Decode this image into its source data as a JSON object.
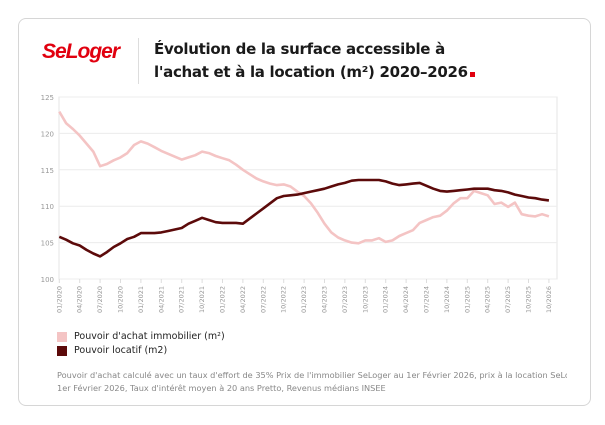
{
  "logo": "SeLoger",
  "title_line1": "Évolution de la surface accessible à",
  "title_line2": "l'achat et à la location (m²) 2020–2026",
  "colors": {
    "brand": "#e1000f",
    "achat": "#f4c4c4",
    "locatif": "#5c0a0a"
  },
  "footnote_line1": "Pouvoir d'achat calculé avec un taux d'effort de 35% Prix de l'immobilier SeLoger au 1er Février 2026, prix à la location SeLoger",
  "footnote_line2": "1er Février 2026, Taux d'intérêt moyen à 20 ans Pretto, Revenus médians INSEE",
  "chart_data": {
    "type": "line",
    "title": "Évolution de la surface accessible à l'achat et à la location (m²) 2020–2026",
    "ylim": [
      100,
      125
    ],
    "yticks": [
      "100",
      "105",
      "110",
      "115",
      "120",
      "125"
    ],
    "grid": true,
    "legend_position": "bottom-left",
    "xticks": [
      "01/2020",
      "04/2020",
      "07/2020",
      "10/2020",
      "01/2021",
      "04/2021",
      "07/2021",
      "10/2021",
      "01/2022",
      "04/2022",
      "07/2022",
      "10/2022",
      "01/2023",
      "04/2023",
      "07/2023",
      "10/2023",
      "01/2024",
      "04/2024",
      "07/2024",
      "10/2024",
      "01/2025",
      "04/2025",
      "07/2025",
      "10/2025",
      "10/2026"
    ],
    "x": [
      "01/2020",
      "02/2020",
      "03/2020",
      "04/2020",
      "05/2020",
      "06/2020",
      "07/2020",
      "08/2020",
      "09/2020",
      "10/2020",
      "11/2020",
      "12/2020",
      "01/2021",
      "02/2021",
      "03/2021",
      "04/2021",
      "05/2021",
      "06/2021",
      "07/2021",
      "08/2021",
      "09/2021",
      "10/2021",
      "11/2021",
      "12/2021",
      "01/2022",
      "02/2022",
      "03/2022",
      "04/2022",
      "05/2022",
      "06/2022",
      "07/2022",
      "08/2022",
      "09/2022",
      "10/2022",
      "11/2022",
      "12/2022",
      "01/2023",
      "02/2023",
      "03/2023",
      "04/2023",
      "05/2023",
      "06/2023",
      "07/2023",
      "08/2023",
      "09/2023",
      "10/2023",
      "11/2023",
      "12/2023",
      "01/2024",
      "02/2024",
      "03/2024",
      "04/2024",
      "05/2024",
      "06/2024",
      "07/2024",
      "08/2024",
      "09/2024",
      "10/2024",
      "11/2024",
      "12/2024",
      "01/2025",
      "02/2025",
      "03/2025",
      "04/2025",
      "05/2025",
      "06/2025",
      "07/2025",
      "08/2025",
      "09/2025",
      "10/2025",
      "11/2025",
      "12/2025",
      "01/2026"
    ],
    "series": [
      {
        "name": "Pouvoir d'achat immobilier (m²)",
        "color": "#f4c4c4",
        "values": [
          123.0,
          121.4,
          120.6,
          119.7,
          118.6,
          117.5,
          115.5,
          115.8,
          116.3,
          116.7,
          117.3,
          118.4,
          118.9,
          118.6,
          118.1,
          117.6,
          117.2,
          116.8,
          116.4,
          116.7,
          117.0,
          117.5,
          117.3,
          116.9,
          116.6,
          116.3,
          115.7,
          115.0,
          114.4,
          113.8,
          113.4,
          113.1,
          112.9,
          113.0,
          112.7,
          112.0,
          111.4,
          110.4,
          109.1,
          107.6,
          106.4,
          105.7,
          105.3,
          105.0,
          104.9,
          105.3,
          105.3,
          105.6,
          105.1,
          105.3,
          105.9,
          106.3,
          106.7,
          107.7,
          108.1,
          108.5,
          108.7,
          109.4,
          110.4,
          111.1,
          111.1,
          112.1,
          111.8,
          111.5,
          110.3,
          110.5,
          109.9,
          110.5,
          108.9,
          108.7,
          108.6,
          108.9,
          108.6
        ]
      },
      {
        "name": "Pouvoir locatif (m2)",
        "color": "#5c0a0a",
        "values": [
          105.8,
          105.4,
          104.9,
          104.6,
          104.0,
          103.5,
          103.1,
          103.7,
          104.4,
          104.9,
          105.5,
          105.8,
          106.3,
          106.3,
          106.3,
          106.4,
          106.6,
          106.8,
          107.0,
          107.6,
          108.0,
          108.4,
          108.1,
          107.8,
          107.7,
          107.7,
          107.7,
          107.6,
          108.3,
          109.0,
          109.7,
          110.4,
          111.1,
          111.4,
          111.5,
          111.6,
          111.8,
          112.0,
          112.2,
          112.4,
          112.7,
          113.0,
          113.2,
          113.5,
          113.6,
          113.6,
          113.6,
          113.6,
          113.4,
          113.1,
          112.9,
          113.0,
          113.1,
          113.2,
          112.8,
          112.4,
          112.1,
          112.0,
          112.1,
          112.2,
          112.3,
          112.4,
          112.4,
          112.4,
          112.2,
          112.1,
          111.9,
          111.6,
          111.4,
          111.2,
          111.1,
          110.9,
          110.8
        ]
      }
    ]
  }
}
